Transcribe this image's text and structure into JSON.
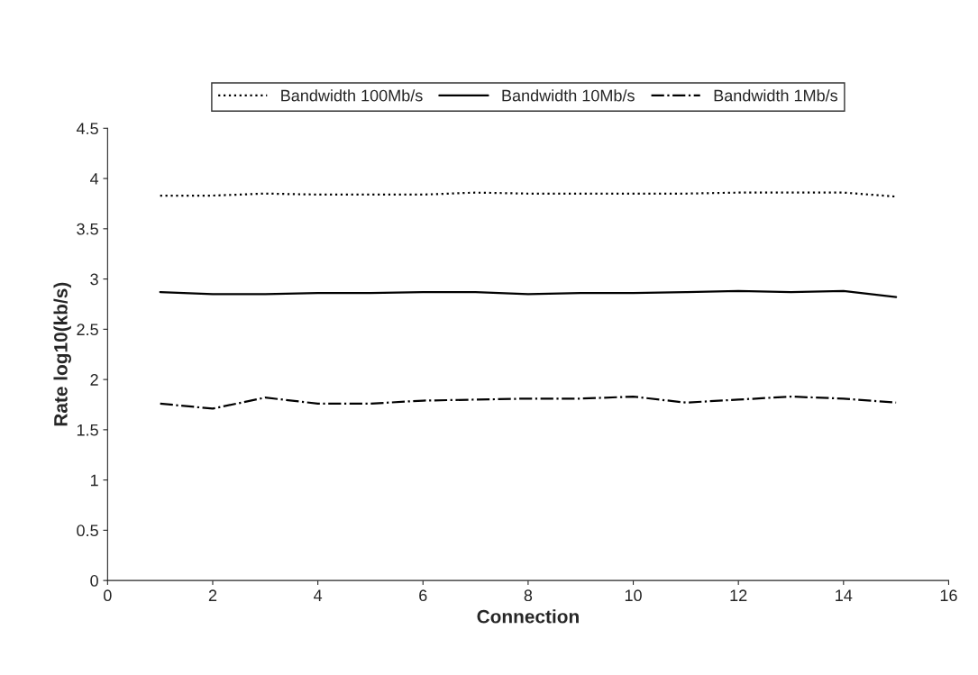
{
  "chart_data": {
    "type": "line",
    "xlabel": "Connection",
    "ylabel": "Rate log10(kb/s)",
    "x": [
      1,
      2,
      3,
      4,
      5,
      6,
      7,
      8,
      9,
      10,
      11,
      12,
      13,
      14,
      15
    ],
    "xlim": [
      0,
      16
    ],
    "xticks": [
      0,
      2,
      4,
      6,
      8,
      10,
      12,
      14,
      16
    ],
    "ylim": [
      0,
      4.5
    ],
    "yticks": [
      0,
      0.5,
      1,
      1.5,
      2,
      2.5,
      3,
      3.5,
      4,
      4.5
    ],
    "legend": "top",
    "grid": false,
    "marker": "none",
    "series": [
      {
        "name": "Bandwidth 100Mb/s",
        "color": "#000000",
        "line_style": "dotted",
        "values": [
          3.83,
          3.83,
          3.85,
          3.84,
          3.84,
          3.84,
          3.86,
          3.85,
          3.85,
          3.85,
          3.85,
          3.86,
          3.86,
          3.86,
          3.82
        ]
      },
      {
        "name": "Bandwidth 10Mb/s",
        "color": "#000000",
        "line_style": "solid",
        "values": [
          2.87,
          2.85,
          2.85,
          2.86,
          2.86,
          2.87,
          2.87,
          2.85,
          2.86,
          2.86,
          2.87,
          2.88,
          2.87,
          2.88,
          2.82
        ]
      },
      {
        "name": "Bandwidth 1Mb/s",
        "color": "#000000",
        "line_style": "dashdot",
        "values": [
          1.76,
          1.71,
          1.82,
          1.76,
          1.76,
          1.79,
          1.8,
          1.81,
          1.81,
          1.83,
          1.77,
          1.8,
          1.83,
          1.81,
          1.77
        ]
      }
    ]
  }
}
